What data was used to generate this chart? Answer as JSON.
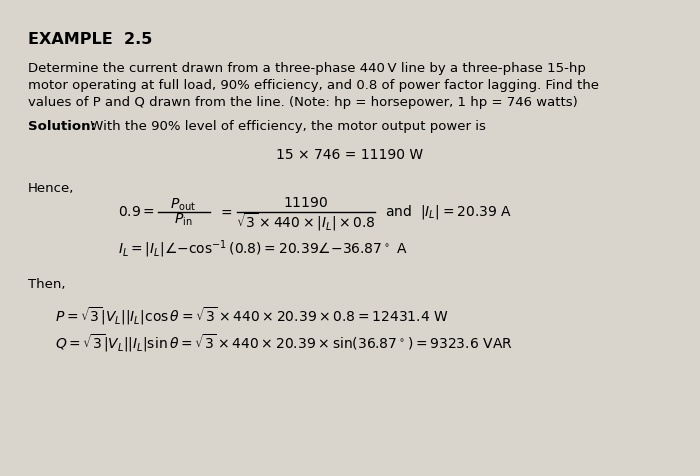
{
  "background_color": "#d9d5cc",
  "title_bold": "EXAMPLE  2.5",
  "body1": "Determine the current drawn from a three-phase 440 V line by a three-phase 15-hp",
  "body2": "motor operating at full load, 90% efficiency, and 0.8 of power factor lagging. Find the",
  "body3": "values of P and Q drawn from the line. (Note: hp = horsepower, 1 hp = 746 watts)",
  "solution_bold": "Solution:",
  "solution_rest": " With the 90% level of efficiency, the motor output power is",
  "centered_eq": "15 × 746 = 11190 W",
  "hence": "Hence,",
  "then": "Then,",
  "p_eq": "$P = \\sqrt{3}|V_L||I_L|\\cos\\theta = \\sqrt{3} \\times 440 \\times 20.39 \\times 0.8 = 12431.4\\ \\mathrm{W}$",
  "q_eq": "$Q = \\sqrt{3}|V_L||I_L|\\sin\\theta = \\sqrt{3} \\times 440 \\times 20.39 \\times \\sin(36.87^\\circ) = 9323.6\\ \\mathrm{VAR}$"
}
